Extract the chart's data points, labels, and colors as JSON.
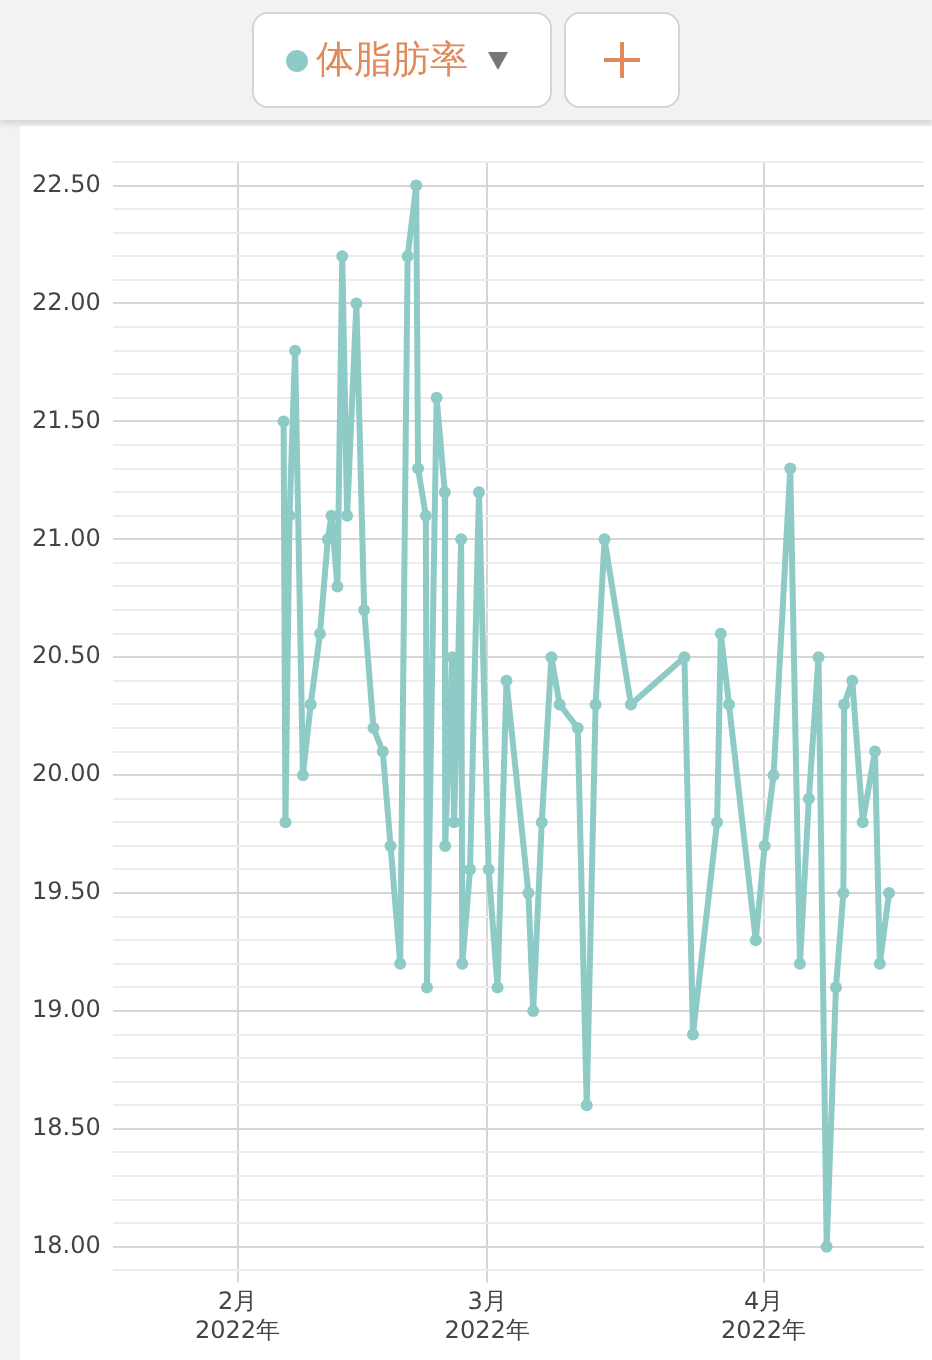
{
  "chart_data": {
    "type": "line",
    "legend": "top",
    "grid": true,
    "marker": "circle",
    "line_style": "solid",
    "xlim": [
      "2022-01-18",
      "2022-04-19"
    ],
    "xticks": [
      {
        "value": "2022-02-01",
        "label": "2月\n2022年"
      },
      {
        "value": "2022-03-01",
        "label": "3月\n2022年"
      },
      {
        "value": "2022-04-01",
        "label": "4月\n2022年"
      }
    ],
    "ylim": [
      17.9,
      22.6
    ],
    "yticks": [
      {
        "value": 17.9,
        "label": null
      },
      {
        "value": 18,
        "label": "18.00"
      },
      {
        "value": 18.1,
        "label": null
      },
      {
        "value": 18.2,
        "label": null
      },
      {
        "value": 18.3,
        "label": null
      },
      {
        "value": 18.4,
        "label": null
      },
      {
        "value": 18.5,
        "label": "18.50"
      },
      {
        "value": 18.6,
        "label": null
      },
      {
        "value": 18.7,
        "label": null
      },
      {
        "value": 18.8,
        "label": null
      },
      {
        "value": 18.9,
        "label": null
      },
      {
        "value": 19,
        "label": "19.00"
      },
      {
        "value": 19.1,
        "label": null
      },
      {
        "value": 19.2,
        "label": null
      },
      {
        "value": 19.3,
        "label": null
      },
      {
        "value": 19.4,
        "label": null
      },
      {
        "value": 19.5,
        "label": "19.50"
      },
      {
        "value": 19.6,
        "label": null
      },
      {
        "value": 19.7,
        "label": null
      },
      {
        "value": 19.8,
        "label": null
      },
      {
        "value": 19.9,
        "label": null
      },
      {
        "value": 20,
        "label": "20.00"
      },
      {
        "value": 20.1,
        "label": null
      },
      {
        "value": 20.2,
        "label": null
      },
      {
        "value": 20.3,
        "label": null
      },
      {
        "value": 20.4,
        "label": null
      },
      {
        "value": 20.5,
        "label": "20.50"
      },
      {
        "value": 20.6,
        "label": null
      },
      {
        "value": 20.7,
        "label": null
      },
      {
        "value": 20.8,
        "label": null
      },
      {
        "value": 20.9,
        "label": null
      },
      {
        "value": 21,
        "label": "21.00"
      },
      {
        "value": 21.1,
        "label": null
      },
      {
        "value": 21.2,
        "label": null
      },
      {
        "value": 21.3,
        "label": null
      },
      {
        "value": 21.4,
        "label": null
      },
      {
        "value": 21.5,
        "label": "21.50"
      },
      {
        "value": 21.6,
        "label": null
      },
      {
        "value": 21.7,
        "label": null
      },
      {
        "value": 21.8,
        "label": null
      },
      {
        "value": 21.9,
        "label": null
      },
      {
        "value": 22,
        "label": "22.00"
      },
      {
        "value": 22.1,
        "label": null
      },
      {
        "value": 22.2,
        "label": null
      },
      {
        "value": 22.3,
        "label": null
      },
      {
        "value": 22.4,
        "label": null
      },
      {
        "value": 22.5,
        "label": "22.50"
      },
      {
        "value": 22.6,
        "label": null
      }
    ],
    "x": [
      "2022-02-06T04:00",
      "2022-02-06T09:00",
      "2022-02-06T20:00",
      "2022-02-07T11:00",
      "2022-02-08T08:00",
      "2022-02-09T05:00",
      "2022-02-10T06:00",
      "2022-02-11T03:00",
      "2022-02-11T13:00",
      "2022-02-12T05:00",
      "2022-02-12T18:00",
      "2022-02-13T07:00",
      "2022-02-14T08:00",
      "2022-02-15T05:00",
      "2022-02-16T06:00",
      "2022-02-17T07:00",
      "2022-02-18T04:00",
      "2022-02-19T06:00",
      "2022-02-20T02:00",
      "2022-02-21T01:00",
      "2022-02-21T06:00",
      "2022-02-22T03:00",
      "2022-02-22T06:00",
      "2022-02-23T08:00",
      "2022-02-24T06:00",
      "2022-02-24T07:00",
      "2022-02-25T02:00",
      "2022-02-25T07:00",
      "2022-02-26T02:00",
      "2022-02-26T05:00",
      "2022-02-27T02:00",
      "2022-02-28T02:00",
      "2022-03-01T04:00",
      "2022-03-02T04:00",
      "2022-03-03T04:00",
      "2022-03-05T15:00",
      "2022-03-06T04:00",
      "2022-03-07T03:00",
      "2022-03-08T05:00",
      "2022-03-09T03:00",
      "2022-03-11T04:00",
      "2022-03-12T04:00",
      "2022-03-13T04:00",
      "2022-03-14T04:00",
      "2022-03-17T03:00",
      "2022-03-23T03:00",
      "2022-03-24T02:00",
      "2022-03-26T19:00",
      "2022-03-27T05:00",
      "2022-03-28T03:00",
      "2022-03-31T03:00",
      "2022-04-01T03:00",
      "2022-04-02T03:00",
      "2022-04-04T00:00",
      "2022-04-05T02:00",
      "2022-04-06T02:00",
      "2022-04-07T04:00",
      "2022-04-08T02:00",
      "2022-04-09T03:00",
      "2022-04-09T23:00",
      "2022-04-10T01:00",
      "2022-04-10T23:00",
      "2022-04-12T03:00",
      "2022-04-13T12:00",
      "2022-04-14T01:00",
      "2022-04-15T02:00"
    ],
    "series": [
      {
        "name": "体脂肪率",
        "color": "#8ecbc6",
        "values": [
          21.5,
          19.8,
          21.1,
          21.8,
          20.0,
          20.3,
          20.6,
          21.0,
          21.1,
          20.8,
          22.2,
          21.1,
          22.0,
          20.7,
          20.2,
          20.1,
          19.7,
          19.2,
          22.2,
          22.5,
          21.3,
          21.1,
          19.1,
          21.6,
          21.2,
          19.7,
          20.5,
          19.8,
          21.0,
          19.2,
          19.6,
          21.2,
          19.6,
          19.1,
          20.4,
          19.5,
          19.0,
          19.8,
          20.5,
          20.3,
          20.2,
          18.6,
          20.3,
          21.0,
          20.3,
          20.5,
          18.9,
          19.8,
          20.6,
          20.3,
          19.3,
          19.7,
          20.0,
          21.3,
          19.2,
          19.9,
          20.5,
          18.0,
          19.1,
          19.5,
          20.3,
          20.4,
          19.8,
          20.1,
          19.2,
          19.5
        ]
      }
    ]
  }
}
